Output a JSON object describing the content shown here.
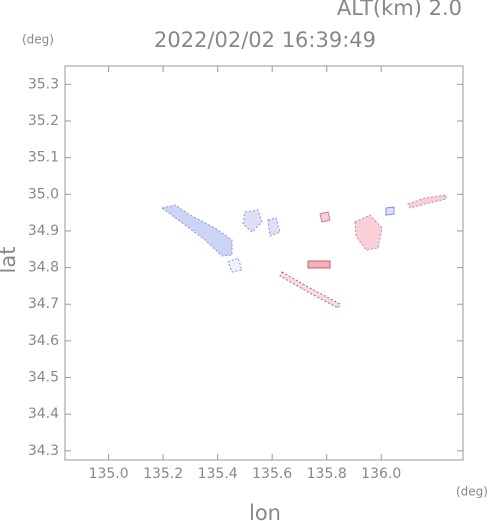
{
  "chart_data": {
    "type": "map",
    "annotation": "ALT(km) 2.0",
    "title": "2022/02/02 16:39:49",
    "y_unit": "(deg)",
    "x_unit": "(deg)",
    "xlabel": "lon",
    "ylabel": "lat",
    "xlim": [
      134.84,
      136.3
    ],
    "ylim": [
      34.275,
      35.35
    ],
    "xticks": [
      {
        "value": 135,
        "label": "135.0"
      },
      135.2,
      135.4,
      135.6,
      135.8,
      {
        "value": 136,
        "label": "136.0"
      }
    ],
    "yticks": [
      34.3,
      34.4,
      34.5,
      34.6,
      34.7,
      34.8,
      34.9,
      {
        "value": 35,
        "label": "35.0"
      },
      35.1,
      35.2,
      35.3
    ]
  }
}
